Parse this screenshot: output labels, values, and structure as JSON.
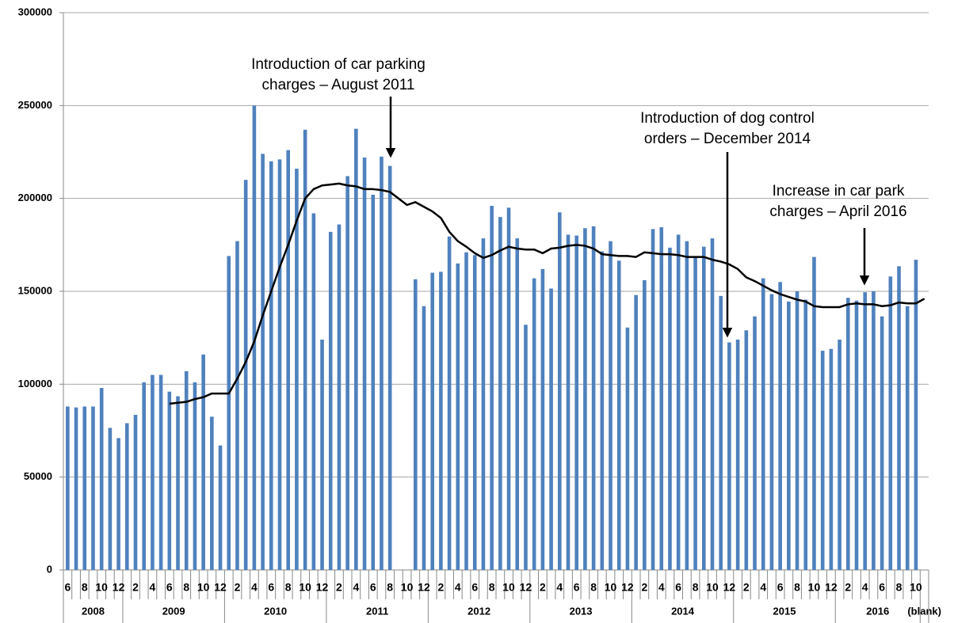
{
  "chart_data": {
    "type": "bar",
    "categories": [
      "6",
      null,
      "8",
      null,
      "10",
      null,
      "12",
      null,
      "2",
      null,
      "4",
      null,
      "6",
      null,
      "8",
      null,
      "10",
      null,
      "12",
      null,
      "2",
      null,
      "4",
      null,
      "6",
      null,
      "8",
      null,
      "10",
      null,
      "12",
      null,
      "2",
      null,
      "4",
      null,
      "6",
      null,
      "8",
      null,
      "10",
      null,
      "12",
      null,
      "2",
      null,
      "4",
      null,
      "6",
      null,
      "8",
      null,
      "10",
      null,
      "12",
      null,
      "2",
      null,
      "4",
      null,
      "6",
      null,
      "8",
      null,
      "10",
      null,
      "12",
      null,
      "2",
      null,
      "4",
      null,
      "6",
      null,
      "8",
      null,
      "10",
      null,
      "12",
      null,
      "2",
      null,
      "4",
      null,
      "6",
      null,
      "8",
      null,
      "10",
      null,
      "12",
      null,
      "2",
      null,
      "4",
      null,
      "6",
      null,
      "8",
      null,
      "10",
      null
    ],
    "years": [
      "2008",
      "2008",
      "2008",
      "2008",
      "2008",
      "2008",
      "2008",
      "2009",
      "2009",
      "2009",
      "2009",
      "2009",
      "2009",
      "2009",
      "2009",
      "2009",
      "2009",
      "2009",
      "2009",
      "2010",
      "2010",
      "2010",
      "2010",
      "2010",
      "2010",
      "2010",
      "2010",
      "2010",
      "2010",
      "2010",
      "2010",
      "2011",
      "2011",
      "2011",
      "2011",
      "2011",
      "2011",
      "2011",
      "2011",
      "2011",
      "2011",
      "2011",
      "2011",
      "2012",
      "2012",
      "2012",
      "2012",
      "2012",
      "2012",
      "2012",
      "2012",
      "2012",
      "2012",
      "2012",
      "2012",
      "2013",
      "2013",
      "2013",
      "2013",
      "2013",
      "2013",
      "2013",
      "2013",
      "2013",
      "2013",
      "2013",
      "2013",
      "2014",
      "2014",
      "2014",
      "2014",
      "2014",
      "2014",
      "2014",
      "2014",
      "2014",
      "2014",
      "2014",
      "2014",
      "2015",
      "2015",
      "2015",
      "2015",
      "2015",
      "2015",
      "2015",
      "2015",
      "2015",
      "2015",
      "2015",
      "2015",
      "2016",
      "2016",
      "2016",
      "2016",
      "2016",
      "2016",
      "2016",
      "2016",
      "2016",
      "2016",
      "(blank)"
    ],
    "series": [
      {
        "type": "bar",
        "color": "#4f81bd",
        "values": [
          88000,
          87500,
          88000,
          88000,
          98000,
          76500,
          71000,
          79000,
          83500,
          101000,
          105000,
          105000,
          96000,
          93500,
          107000,
          101000,
          116000,
          82500,
          67000,
          169000,
          177000,
          210000,
          250000,
          224000,
          220000,
          221000,
          226000,
          216000,
          237000,
          192000,
          124000,
          182000,
          186000,
          212000,
          237500,
          222000,
          202000,
          222500,
          217500,
          null,
          null,
          156500,
          142000,
          160000,
          160500,
          179500,
          165000,
          171000,
          169500,
          178500,
          196000,
          190000,
          195000,
          178500,
          132000,
          157000,
          162000,
          151500,
          192500,
          180500,
          180000,
          184000,
          185000,
          171500,
          177000,
          166500,
          130500,
          148000,
          156000,
          183500,
          184500,
          173500,
          180500,
          177000,
          168500,
          174000,
          178500,
          147500,
          122500,
          124000,
          129000,
          136500,
          157000,
          148500,
          155000,
          144500,
          150000,
          145500,
          168500,
          118000,
          119000,
          124000,
          146500,
          145000,
          149500,
          150000,
          136500,
          158000,
          163500,
          142000,
          167000,
          null
        ]
      },
      {
        "type": "line",
        "color": "#000000",
        "values": [
          null,
          null,
          null,
          null,
          null,
          null,
          null,
          null,
          null,
          null,
          null,
          null,
          89500,
          90000,
          90500,
          92000,
          93000,
          95000,
          95000,
          95000,
          103000,
          112000,
          123000,
          137000,
          150000,
          163000,
          175000,
          188000,
          200000,
          205000,
          207000,
          207500,
          208000,
          207000,
          206500,
          205000,
          205000,
          204500,
          203500,
          200000,
          196500,
          198000,
          195500,
          193000,
          189500,
          182000,
          177000,
          174000,
          170500,
          168000,
          169500,
          172000,
          174000,
          173000,
          172500,
          172500,
          170500,
          173000,
          173500,
          174500,
          175000,
          174500,
          173000,
          170000,
          169500,
          169000,
          169000,
          168500,
          171000,
          170500,
          170000,
          170000,
          169500,
          168500,
          168500,
          168500,
          167000,
          166000,
          164500,
          162000,
          157500,
          155500,
          153000,
          150500,
          148500,
          147000,
          145500,
          144500,
          142000,
          141500,
          141500,
          141500,
          143000,
          143500,
          143000,
          143000,
          142000,
          142500,
          144000,
          143500,
          143500,
          146000
        ]
      }
    ],
    "ylim": [
      0,
      300000
    ],
    "yticks": [
      0,
      50000,
      100000,
      150000,
      200000,
      250000,
      300000
    ],
    "grid": true,
    "annotations": [
      {
        "lines": [
          "Introduction of car parking",
          "charges – August 2011"
        ]
      },
      {
        "lines": [
          "Introduction of dog control",
          "orders – December 2014"
        ]
      },
      {
        "lines": [
          "Increase in car park",
          "charges – April 2016"
        ]
      }
    ]
  }
}
